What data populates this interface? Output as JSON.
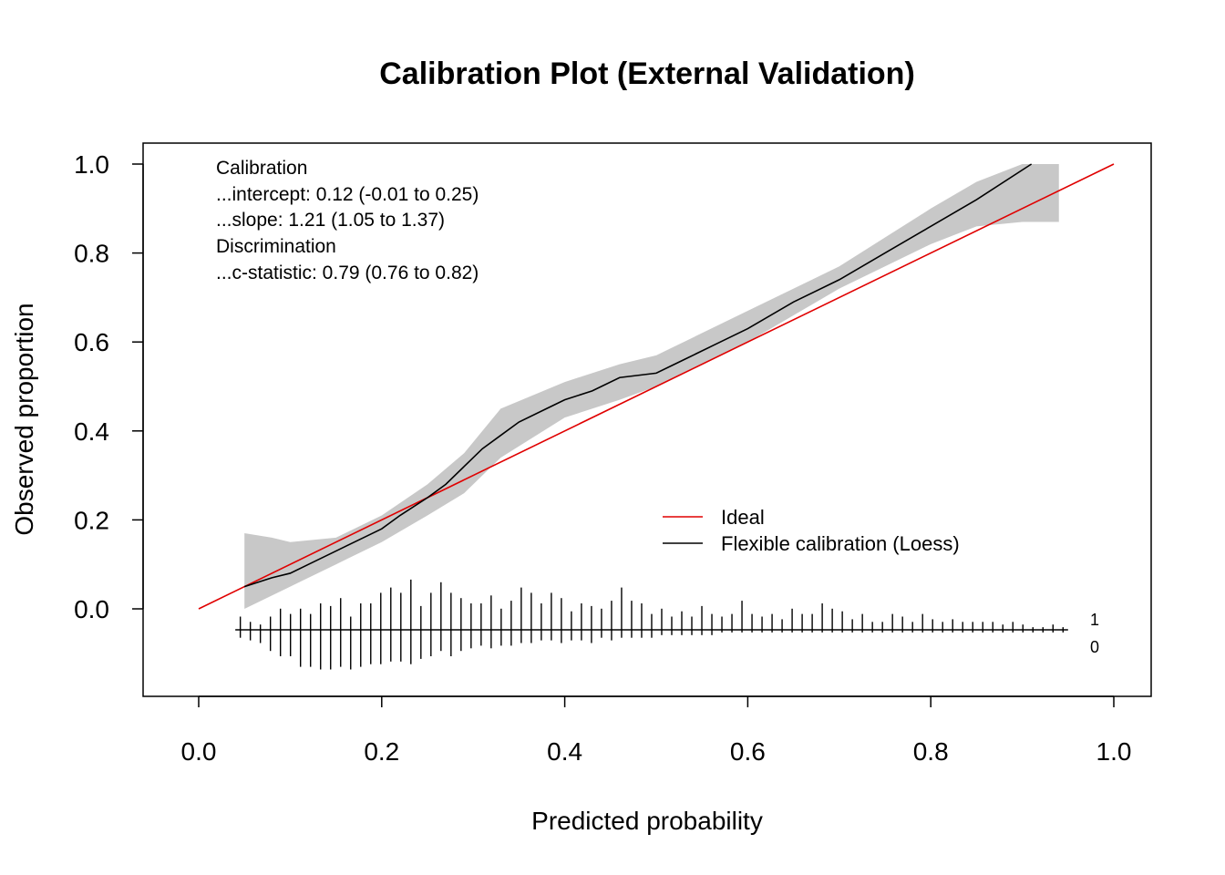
{
  "chart_data": {
    "type": "line",
    "title": "Calibration Plot (External Validation)",
    "xlabel": "Predicted probability",
    "ylabel": "Observed proportion",
    "xlim": [
      0.0,
      1.0
    ],
    "ylim": [
      0.0,
      1.0
    ],
    "x_ticks": [
      "0.0",
      "0.2",
      "0.4",
      "0.6",
      "0.8",
      "1.0"
    ],
    "y_ticks": [
      "0.0",
      "0.2",
      "0.4",
      "0.6",
      "0.8",
      "1.0"
    ],
    "grid": false,
    "legend_position": "bottom-right",
    "stats_lines": [
      "Calibration",
      "...intercept: 0.12 (-0.01 to 0.25)",
      "...slope: 1.21 (1.05 to 1.37)",
      "Discrimination",
      "...c-statistic: 0.79 (0.76 to 0.82)"
    ],
    "series": [
      {
        "name": "Ideal",
        "color": "#e00000",
        "x": [
          0.0,
          1.0
        ],
        "y": [
          0.0,
          1.0
        ]
      },
      {
        "name": "Flexible calibration (Loess)",
        "color": "#000000",
        "x": [
          0.05,
          0.08,
          0.1,
          0.12,
          0.15,
          0.18,
          0.2,
          0.22,
          0.25,
          0.27,
          0.29,
          0.31,
          0.33,
          0.35,
          0.38,
          0.4,
          0.43,
          0.46,
          0.5,
          0.53,
          0.56,
          0.6,
          0.65,
          0.7,
          0.75,
          0.8,
          0.85,
          0.91
        ],
        "y": [
          0.05,
          0.07,
          0.08,
          0.1,
          0.13,
          0.16,
          0.18,
          0.21,
          0.25,
          0.28,
          0.32,
          0.36,
          0.39,
          0.42,
          0.45,
          0.47,
          0.49,
          0.52,
          0.53,
          0.56,
          0.59,
          0.63,
          0.69,
          0.74,
          0.8,
          0.86,
          0.92,
          1.0
        ]
      }
    ],
    "confidence_band": {
      "color": "#c8c8c8",
      "x": [
        0.05,
        0.08,
        0.1,
        0.15,
        0.2,
        0.25,
        0.29,
        0.33,
        0.4,
        0.46,
        0.5,
        0.53,
        0.6,
        0.7,
        0.8,
        0.85,
        0.9,
        0.94
      ],
      "lower": [
        0.0,
        0.03,
        0.05,
        0.1,
        0.15,
        0.21,
        0.26,
        0.34,
        0.43,
        0.47,
        0.5,
        0.53,
        0.6,
        0.72,
        0.82,
        0.86,
        0.87,
        0.87
      ],
      "upper": [
        0.17,
        0.16,
        0.15,
        0.16,
        0.21,
        0.28,
        0.35,
        0.45,
        0.51,
        0.55,
        0.57,
        0.6,
        0.67,
        0.77,
        0.9,
        0.96,
        1.0,
        1.0
      ]
    },
    "spike_labels": [
      "1",
      "0"
    ],
    "spike_histogram": {
      "x_range": [
        0.04,
        0.95
      ],
      "events_1": [
        0.05,
        0.03,
        0.02,
        0.05,
        0.08,
        0.06,
        0.08,
        0.06,
        0.1,
        0.09,
        0.12,
        0.05,
        0.1,
        0.1,
        0.14,
        0.16,
        0.14,
        0.19,
        0.09,
        0.14,
        0.18,
        0.14,
        0.12,
        0.1,
        0.1,
        0.13,
        0.08,
        0.11,
        0.16,
        0.14,
        0.1,
        0.14,
        0.12,
        0.07,
        0.1,
        0.09,
        0.08,
        0.11,
        0.16,
        0.11,
        0.1,
        0.06,
        0.08,
        0.05,
        0.07,
        0.05,
        0.09,
        0.06,
        0.05,
        0.06,
        0.11,
        0.06,
        0.05,
        0.06,
        0.04,
        0.08,
        0.06,
        0.06,
        0.1,
        0.08,
        0.07,
        0.04,
        0.06,
        0.03,
        0.03,
        0.06,
        0.05,
        0.03,
        0.06,
        0.04,
        0.03,
        0.04,
        0.03,
        0.03,
        0.03,
        0.03,
        0.02,
        0.03,
        0.02,
        0.01,
        0.01,
        0.02,
        0.01
      ],
      "events_0": [
        0.03,
        0.04,
        0.05,
        0.08,
        0.1,
        0.1,
        0.14,
        0.14,
        0.15,
        0.15,
        0.14,
        0.15,
        0.14,
        0.13,
        0.13,
        0.12,
        0.12,
        0.13,
        0.11,
        0.1,
        0.08,
        0.1,
        0.08,
        0.07,
        0.06,
        0.07,
        0.06,
        0.06,
        0.05,
        0.05,
        0.04,
        0.04,
        0.05,
        0.04,
        0.04,
        0.05,
        0.03,
        0.04,
        0.03,
        0.03,
        0.03,
        0.03,
        0.02,
        0.02,
        0.02,
        0.02,
        0.02,
        0.02,
        0.01,
        0.01,
        0.01,
        0.01,
        0.01,
        0.01,
        0.01,
        0.01,
        0.01,
        0.01,
        0.01,
        0.01,
        0.01,
        0.01,
        0.01,
        0.01,
        0.01,
        0.01,
        0.01,
        0.01,
        0.01,
        0.01,
        0.01,
        0.01,
        0.01,
        0.01,
        0.01,
        0.01,
        0.01,
        0.01,
        0.01,
        0.01,
        0.01,
        0.01,
        0.01
      ]
    }
  }
}
